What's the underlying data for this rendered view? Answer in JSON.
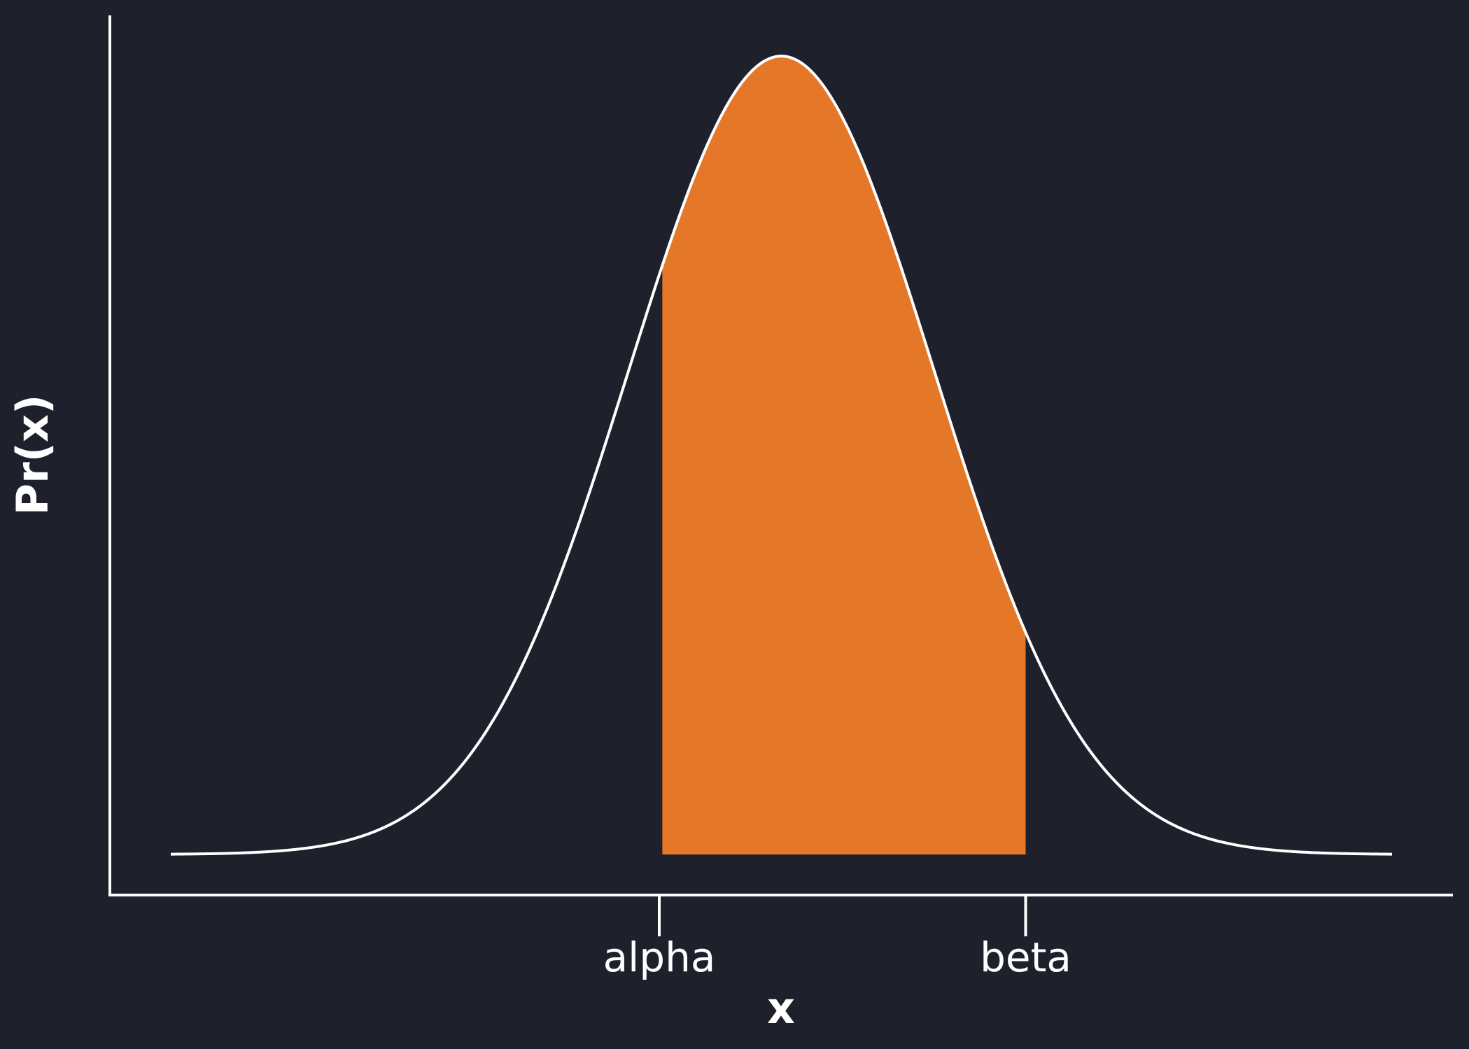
{
  "colors": {
    "background": "#1e202b",
    "fill": "#e57828",
    "line": "#ffffff"
  },
  "chart_data": {
    "type": "area",
    "title": "",
    "xlabel": "x",
    "ylabel": "Pr(x)",
    "distribution": "normal",
    "mean": 0,
    "sd": 1,
    "xlim": [
      -4.0,
      4.0
    ],
    "ylim": [
      0,
      0.399
    ],
    "shaded_region": {
      "from": -0.78,
      "to": 1.6
    },
    "ticks": [
      {
        "x": -0.8,
        "label": "alpha"
      },
      {
        "x": 1.6,
        "label": "beta"
      }
    ],
    "grid": false,
    "legend": "none"
  }
}
